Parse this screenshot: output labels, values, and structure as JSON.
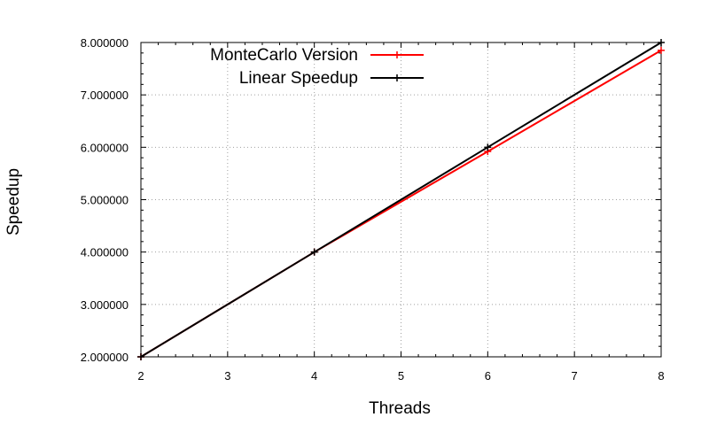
{
  "chart_data": {
    "type": "line",
    "title": "",
    "xlabel": "Threads",
    "ylabel": "Speedup",
    "xlim": [
      2,
      8
    ],
    "ylim": [
      2.0,
      8.0
    ],
    "x_ticks": [
      "2",
      "3",
      "4",
      "5",
      "6",
      "7",
      "8"
    ],
    "y_ticks": [
      "2.000000",
      "3.000000",
      "4.000000",
      "5.000000",
      "6.000000",
      "7.000000",
      "8.000000"
    ],
    "grid": true,
    "legend_position": "top-left",
    "series": [
      {
        "name": "MonteCarlo Version",
        "color": "#ff0000",
        "x": [
          2,
          4,
          6,
          8
        ],
        "y": [
          2.0,
          4.0,
          5.92,
          7.85
        ]
      },
      {
        "name": "Linear Speedup",
        "color": "#000000",
        "x": [
          2,
          4,
          6,
          8
        ],
        "y": [
          2.0,
          4.0,
          6.0,
          8.0
        ]
      }
    ]
  }
}
